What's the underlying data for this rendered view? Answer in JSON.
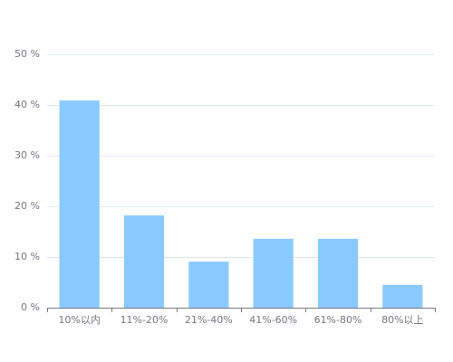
{
  "chart_data": {
    "type": "bar",
    "categories": [
      "10%以内",
      "11%-20%",
      "21%-40%",
      "41%-60%",
      "61%-80%",
      "80%以上"
    ],
    "values": [
      40.9,
      18.2,
      9.1,
      13.6,
      13.6,
      4.5
    ],
    "color": "#89c9ff",
    "ylim": [
      0,
      50
    ],
    "yticks": [
      {
        "value": 0,
        "label": "0 %"
      },
      {
        "value": 10,
        "label": "10 %"
      },
      {
        "value": 20,
        "label": "20 %"
      },
      {
        "value": 30,
        "label": "30 %"
      },
      {
        "value": 40,
        "label": "40 %"
      },
      {
        "value": 50,
        "label": "50 %"
      }
    ],
    "grid": true
  }
}
